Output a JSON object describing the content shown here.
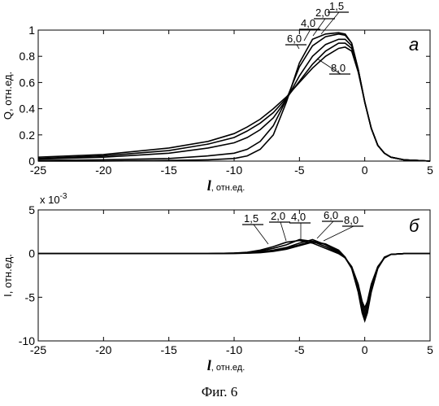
{
  "caption": "Фиг. 6",
  "chart_data": [
    {
      "type": "line",
      "panel_letter": "а",
      "ylabel": "Q, отн.ед.",
      "xlabel_main": "l",
      "xlabel_sub": ", отн.ед.",
      "xlim": [
        -25,
        5
      ],
      "ylim": [
        0,
        1
      ],
      "xticks": [
        -25,
        -20,
        -15,
        -10,
        -5,
        0,
        5
      ],
      "yticks": [
        0,
        0.2,
        0.4,
        0.6,
        0.8,
        1
      ],
      "ytick_labels": [
        "0",
        "0.2",
        "0.4",
        "0.6",
        "0.8",
        "1"
      ],
      "series": [
        {
          "name": "1,5",
          "x": [
            -25,
            -20,
            -15,
            -12,
            -10,
            -9,
            -8,
            -7,
            -6,
            -5,
            -4,
            -3,
            -2,
            -1.5,
            -1,
            -0.5,
            0,
            0.5,
            1,
            1.5,
            2,
            3,
            4,
            5
          ],
          "y": [
            0,
            0,
            0.005,
            0.01,
            0.02,
            0.04,
            0.09,
            0.2,
            0.45,
            0.75,
            0.93,
            0.97,
            0.98,
            0.97,
            0.9,
            0.7,
            0.45,
            0.25,
            0.12,
            0.06,
            0.03,
            0.01,
            0.005,
            0
          ]
        },
        {
          "name": "2,0",
          "x": [
            -25,
            -20,
            -15,
            -12,
            -10,
            -9,
            -8,
            -7,
            -6,
            -5,
            -4,
            -3,
            -2,
            -1.5,
            -1,
            -0.5,
            0,
            0.5,
            1,
            1.5,
            2,
            3,
            4,
            5
          ],
          "y": [
            0.005,
            0.01,
            0.02,
            0.04,
            0.06,
            0.09,
            0.15,
            0.27,
            0.47,
            0.72,
            0.88,
            0.95,
            0.97,
            0.96,
            0.9,
            0.7,
            0.45,
            0.25,
            0.12,
            0.06,
            0.03,
            0.01,
            0.005,
            0
          ]
        },
        {
          "name": "4,0",
          "x": [
            -25,
            -20,
            -15,
            -12,
            -10,
            -9,
            -8,
            -7,
            -6,
            -5,
            -4,
            -3,
            -2,
            -1.5,
            -1,
            -0.5,
            0,
            0.5,
            1,
            1.5,
            2,
            3,
            4,
            5
          ],
          "y": [
            0.015,
            0.03,
            0.06,
            0.1,
            0.14,
            0.18,
            0.24,
            0.33,
            0.47,
            0.65,
            0.8,
            0.89,
            0.93,
            0.93,
            0.88,
            0.7,
            0.45,
            0.25,
            0.12,
            0.06,
            0.03,
            0.01,
            0.005,
            0
          ]
        },
        {
          "name": "6,0",
          "x": [
            -25,
            -20,
            -15,
            -12,
            -10,
            -9,
            -8,
            -7,
            -6,
            -5,
            -4,
            -3,
            -2,
            -1.5,
            -1,
            -0.5,
            0,
            0.5,
            1,
            1.5,
            2,
            3,
            4,
            5
          ],
          "y": [
            0.02,
            0.04,
            0.08,
            0.13,
            0.18,
            0.23,
            0.29,
            0.37,
            0.48,
            0.61,
            0.74,
            0.84,
            0.9,
            0.9,
            0.86,
            0.7,
            0.45,
            0.25,
            0.12,
            0.06,
            0.03,
            0.01,
            0.005,
            0
          ]
        },
        {
          "name": "8,0",
          "x": [
            -25,
            -20,
            -15,
            -12,
            -10,
            -9,
            -8,
            -7,
            -6,
            -5,
            -4,
            -3,
            -2,
            -1.5,
            -1,
            -0.5,
            0,
            0.5,
            1,
            1.5,
            2,
            3,
            4,
            5
          ],
          "y": [
            0.03,
            0.05,
            0.1,
            0.15,
            0.21,
            0.26,
            0.32,
            0.4,
            0.49,
            0.6,
            0.71,
            0.8,
            0.86,
            0.87,
            0.84,
            0.68,
            0.45,
            0.25,
            0.12,
            0.06,
            0.03,
            0.01,
            0.005,
            0
          ]
        }
      ]
    },
    {
      "type": "line",
      "panel_letter": "б",
      "ylabel": "I, отн.ед.",
      "xlabel_main": "l",
      "xlabel_sub": ", отн.ед.",
      "scale_note": "x 10",
      "scale_exp": "-3",
      "xlim": [
        -25,
        5
      ],
      "ylim": [
        -10,
        5
      ],
      "xticks": [
        -25,
        -20,
        -15,
        -10,
        -5,
        0,
        5
      ],
      "yticks": [
        -10,
        -5,
        0,
        5
      ],
      "ytick_labels": [
        "-10",
        "-5",
        "0",
        "5"
      ],
      "series": [
        {
          "name": "1,5",
          "x": [
            -25,
            -12,
            -10,
            -9,
            -8,
            -7,
            -6,
            -5,
            -4,
            -3,
            -2,
            -1.5,
            -1,
            -0.5,
            -0.2,
            0,
            0.2,
            0.5,
            1,
            1.5,
            2,
            3,
            5
          ],
          "y": [
            0,
            0,
            0.05,
            0.15,
            0.4,
            0.8,
            1.3,
            1.5,
            1.2,
            0.6,
            0,
            -0.5,
            -1.5,
            -3.5,
            -5.5,
            -6.2,
            -5.5,
            -3.5,
            -1.5,
            -0.5,
            -0.1,
            0,
            0
          ]
        },
        {
          "name": "2,0",
          "x": [
            -25,
            -12,
            -10,
            -9,
            -8,
            -7,
            -6,
            -5,
            -4,
            -3,
            -2,
            -1.5,
            -1,
            -0.5,
            -0.2,
            0,
            0.2,
            0.5,
            1,
            1.5,
            2,
            3,
            5
          ],
          "y": [
            0,
            0,
            0.05,
            0.1,
            0.3,
            0.6,
            1.0,
            1.6,
            1.4,
            0.8,
            0.1,
            -0.5,
            -1.5,
            -3.7,
            -5.8,
            -6.6,
            -5.8,
            -3.7,
            -1.5,
            -0.5,
            -0.1,
            0,
            0
          ]
        },
        {
          "name": "4,0",
          "x": [
            -25,
            -12,
            -10,
            -9,
            -8,
            -7,
            -6,
            -5,
            -4,
            -3,
            -2,
            -1.5,
            -1,
            -0.5,
            -0.2,
            0,
            0.2,
            0.5,
            1,
            1.5,
            2,
            3,
            5
          ],
          "y": [
            0,
            0,
            0.03,
            0.08,
            0.2,
            0.4,
            0.7,
            1.2,
            1.6,
            1.0,
            0.2,
            -0.5,
            -1.6,
            -4.0,
            -6.2,
            -7.0,
            -6.2,
            -4.0,
            -1.6,
            -0.5,
            -0.1,
            0,
            0
          ]
        },
        {
          "name": "6,0",
          "x": [
            -25,
            -12,
            -10,
            -9,
            -8,
            -7,
            -6,
            -5,
            -4,
            -3,
            -2,
            -1.5,
            -1,
            -0.5,
            -0.2,
            0,
            0.2,
            0.5,
            1,
            1.5,
            2,
            3,
            5
          ],
          "y": [
            0,
            0,
            0.02,
            0.05,
            0.15,
            0.3,
            0.6,
            1.0,
            1.4,
            1.1,
            0.3,
            -0.5,
            -1.7,
            -4.2,
            -6.5,
            -7.4,
            -6.5,
            -4.2,
            -1.7,
            -0.5,
            -0.1,
            0,
            0
          ]
        },
        {
          "name": "8,0",
          "x": [
            -25,
            -12,
            -10,
            -9,
            -8,
            -7,
            -6,
            -5,
            -4,
            -3,
            -2,
            -1.5,
            -1,
            -0.5,
            -0.2,
            0,
            0.2,
            0.5,
            1,
            1.5,
            2,
            3,
            5
          ],
          "y": [
            0,
            0,
            0.02,
            0.04,
            0.1,
            0.25,
            0.5,
            0.9,
            1.3,
            1.1,
            0.4,
            -0.4,
            -1.7,
            -4.4,
            -6.8,
            -7.7,
            -6.8,
            -4.4,
            -1.7,
            -0.4,
            -0.1,
            0,
            0
          ]
        }
      ]
    }
  ]
}
